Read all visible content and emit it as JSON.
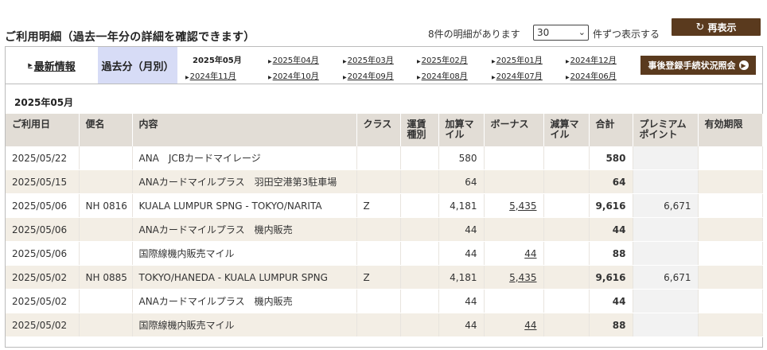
{
  "page": {
    "title": "ご利用明細（過去一年分の詳細を確認できます）",
    "count_text": "8件の明細があります",
    "per_page_value": "30",
    "per_page_suffix": "件ずつ表示する",
    "refresh_label": "再表示"
  },
  "nav": {
    "latest_label": "最新情報",
    "past_label": "過去分（月別）",
    "current_month": "2025年05月",
    "months_row1": [
      "2025年04月",
      "2025年03月",
      "2025年02月",
      "2025年01月",
      "2024年12月"
    ],
    "months_row2": [
      "2024年11月",
      "2024年10月",
      "2024年09月",
      "2024年08月",
      "2024年07月",
      "2024年06月"
    ],
    "register_label": "事後登録手続状況照会"
  },
  "table": {
    "month_heading": "2025年05月",
    "headers": {
      "date": "ご利用日",
      "flight": "便名",
      "content": "内容",
      "class": "クラス",
      "fare": "運賃種別",
      "added": "加算マイル",
      "bonus": "ボーナス",
      "deducted": "減算マイル",
      "total": "合計",
      "premium": "プレミアムポイント",
      "expiry": "有効期限"
    },
    "rows": [
      {
        "date": "2025/05/22",
        "flight": "",
        "content": "ANA　JCBカードマイレージ",
        "class": "",
        "fare": "",
        "added": "580",
        "bonus": "",
        "deducted": "",
        "total": "580",
        "premium": "",
        "expiry": ""
      },
      {
        "date": "2025/05/15",
        "flight": "",
        "content": "ANAカードマイルプラス　羽田空港第3駐車場",
        "class": "",
        "fare": "",
        "added": "64",
        "bonus": "",
        "deducted": "",
        "total": "64",
        "premium": "",
        "expiry": ""
      },
      {
        "date": "2025/05/06",
        "flight": "NH 0816",
        "content": "KUALA LUMPUR SPNG - TOKYO/NARITA",
        "class": "Z",
        "fare": "",
        "added": "4,181",
        "bonus": "5,435",
        "deducted": "",
        "total": "9,616",
        "premium": "6,671",
        "expiry": ""
      },
      {
        "date": "2025/05/06",
        "flight": "",
        "content": "ANAカードマイルプラス　機内販売",
        "class": "",
        "fare": "",
        "added": "44",
        "bonus": "",
        "deducted": "",
        "total": "44",
        "premium": "",
        "expiry": ""
      },
      {
        "date": "2025/05/06",
        "flight": "",
        "content": "国際線機内販売マイル",
        "class": "",
        "fare": "",
        "added": "44",
        "bonus": "44",
        "deducted": "",
        "total": "88",
        "premium": "",
        "expiry": ""
      },
      {
        "date": "2025/05/02",
        "flight": "NH 0885",
        "content": "TOKYO/HANEDA - KUALA LUMPUR SPNG",
        "class": "Z",
        "fare": "",
        "added": "4,181",
        "bonus": "5,435",
        "deducted": "",
        "total": "9,616",
        "premium": "6,671",
        "expiry": ""
      },
      {
        "date": "2025/05/02",
        "flight": "",
        "content": "ANAカードマイルプラス　機内販売",
        "class": "",
        "fare": "",
        "added": "44",
        "bonus": "",
        "deducted": "",
        "total": "44",
        "premium": "",
        "expiry": ""
      },
      {
        "date": "2025/05/02",
        "flight": "",
        "content": "国際線機内販売マイル",
        "class": "",
        "fare": "",
        "added": "44",
        "bonus": "44",
        "deducted": "",
        "total": "88",
        "premium": "",
        "expiry": ""
      }
    ]
  },
  "colors": {
    "brand_brown": "#5a3a1e",
    "tab_active": "#d7dcf6",
    "row_alt": "#f3eee5",
    "header_bg": "#e2ddd6"
  },
  "icons": {
    "refresh": "refresh-icon",
    "arrow_right": "arrow-right-circle-icon",
    "link_triangle": "triangle-right-icon",
    "select_arrow": "chevron-down-icon"
  }
}
